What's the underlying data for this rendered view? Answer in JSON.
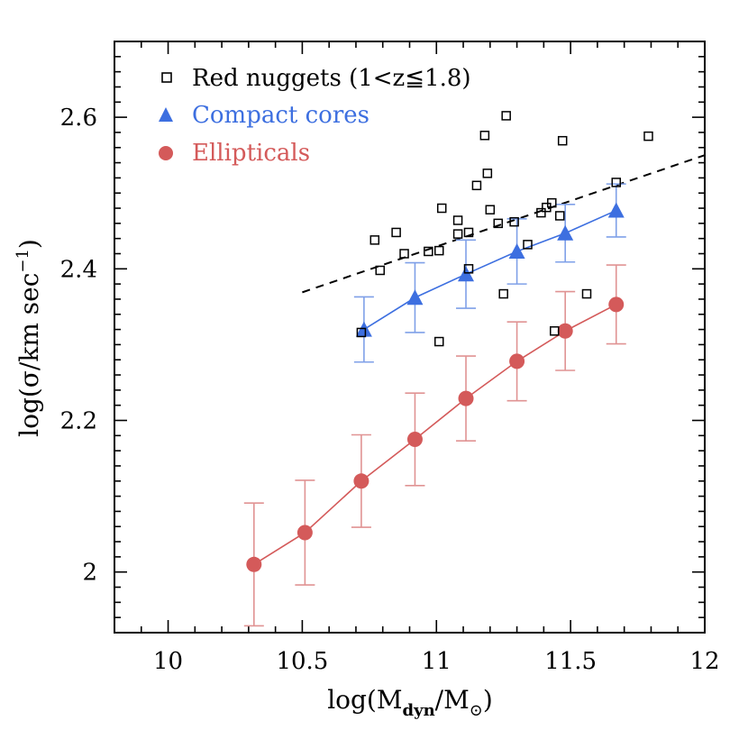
{
  "chart_data": {
    "type": "scatter",
    "title": "",
    "xlabel": "log(M_dyn/M_⊙)",
    "xlabel_parts": {
      "main": "log(M",
      "sub": "dyn",
      "slash": "/M",
      "sun": "⊙",
      "close": ")"
    },
    "ylabel": "log(σ/km sec⁻¹)",
    "ylabel_parts": {
      "main": "log(σ/km sec",
      "sup": "−1",
      "close": ")"
    },
    "xlim": [
      9.8,
      12.0
    ],
    "ylim": [
      1.92,
      2.7
    ],
    "x_ticks": [
      10,
      10.5,
      11,
      11.5,
      12
    ],
    "x_tick_labels": [
      "10",
      "10.5",
      "11",
      "11.5",
      "12"
    ],
    "y_ticks": [
      2.0,
      2.2,
      2.4,
      2.6
    ],
    "y_tick_labels": [
      "2",
      "2.2",
      "2.4",
      "2.6"
    ],
    "grid": false,
    "legend_position": "top-left",
    "colors": {
      "nuggets": "#000000",
      "cores": "#3d6fe0",
      "ellipticals": "#d45a5a",
      "core_err": "#7fa0e8",
      "ell_err": "#e09393"
    },
    "series": [
      {
        "name": "Red nuggets (1<z≦1.8)",
        "marker": "open-square",
        "points": [
          [
            10.72,
            2.316
          ],
          [
            10.77,
            2.438
          ],
          [
            10.79,
            2.398
          ],
          [
            10.85,
            2.448
          ],
          [
            10.88,
            2.42
          ],
          [
            10.97,
            2.423
          ],
          [
            11.01,
            2.424
          ],
          [
            11.02,
            2.48
          ],
          [
            11.01,
            2.304
          ],
          [
            11.08,
            2.464
          ],
          [
            11.08,
            2.446
          ],
          [
            11.12,
            2.448
          ],
          [
            11.12,
            2.4
          ],
          [
            11.15,
            2.51
          ],
          [
            11.18,
            2.576
          ],
          [
            11.19,
            2.526
          ],
          [
            11.2,
            2.478
          ],
          [
            11.23,
            2.46
          ],
          [
            11.26,
            2.602
          ],
          [
            11.25,
            2.367
          ],
          [
            11.29,
            2.462
          ],
          [
            11.34,
            2.432
          ],
          [
            11.39,
            2.474
          ],
          [
            11.41,
            2.481
          ],
          [
            11.43,
            2.487
          ],
          [
            11.44,
            2.318
          ],
          [
            11.46,
            2.47
          ],
          [
            11.47,
            2.569
          ],
          [
            11.56,
            2.367
          ],
          [
            11.67,
            2.514
          ],
          [
            11.79,
            2.575
          ]
        ]
      },
      {
        "name": "Compact cores",
        "marker": "filled-triangle",
        "points": [
          [
            10.73,
            2.32,
            0.043
          ],
          [
            10.92,
            2.362,
            0.046
          ],
          [
            11.11,
            2.393,
            0.045
          ],
          [
            11.3,
            2.423,
            0.043
          ],
          [
            11.48,
            2.447,
            0.038
          ],
          [
            11.67,
            2.477,
            0.035
          ]
        ]
      },
      {
        "name": "Ellipticals",
        "marker": "filled-circle",
        "points": [
          [
            10.32,
            2.01,
            0.081
          ],
          [
            10.51,
            2.052,
            0.069
          ],
          [
            10.72,
            2.12,
            0.061
          ],
          [
            10.92,
            2.175,
            0.061
          ],
          [
            11.11,
            2.229,
            0.056
          ],
          [
            11.3,
            2.278,
            0.052
          ],
          [
            11.48,
            2.318,
            0.052
          ],
          [
            11.67,
            2.353,
            0.052
          ]
        ]
      },
      {
        "name": "fit",
        "marker": "dashed-line",
        "points": [
          [
            10.5,
            2.369
          ],
          [
            12.0,
            2.55
          ]
        ]
      }
    ]
  }
}
